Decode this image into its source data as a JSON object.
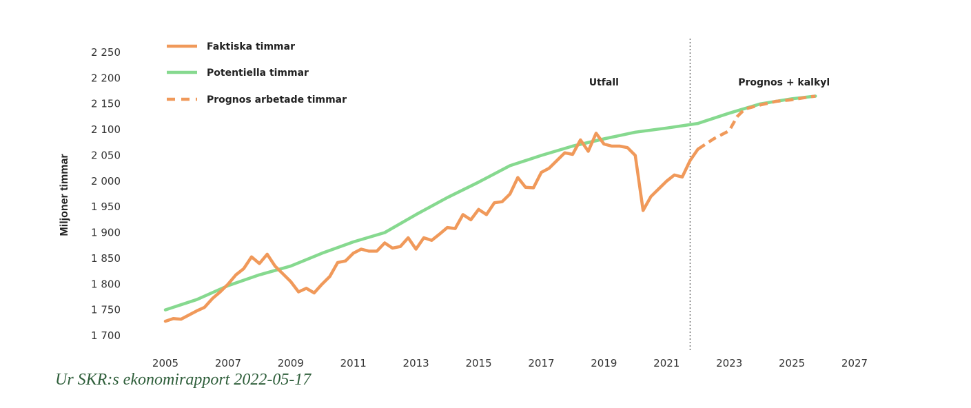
{
  "chart_data": {
    "type": "line",
    "ylabel": "Miljoner timmar",
    "xlabel": "",
    "title": "",
    "ylim": [
      1700,
      2250
    ],
    "xlim": [
      2005,
      2027
    ],
    "y_ticks": [
      "1 700",
      "1 750",
      "1 800",
      "1 850",
      "1 900",
      "1 950",
      "2 000",
      "2 050",
      "2 100",
      "2 150",
      "2 200",
      "2 250"
    ],
    "y_tick_values": [
      1700,
      1750,
      1800,
      1850,
      1900,
      1950,
      2000,
      2050,
      2100,
      2150,
      2200,
      2250
    ],
    "x_ticks": [
      "2005",
      "2007",
      "2009",
      "2011",
      "2013",
      "2015",
      "2017",
      "2019",
      "2021",
      "2023",
      "2025",
      "2027"
    ],
    "x_tick_values": [
      2005,
      2007,
      2009,
      2011,
      2013,
      2015,
      2017,
      2019,
      2021,
      2023,
      2025,
      2027
    ],
    "legend_position": "top-left",
    "grid": false,
    "divider_year": 2021.75,
    "regions": [
      {
        "label": "Utfall",
        "x": 2019
      },
      {
        "label": "Prognos + kalkyl",
        "x": 2024.75
      }
    ],
    "series": [
      {
        "name": "Faktiska timmar",
        "color": "#f0995a",
        "style": "solid",
        "points": [
          [
            2005.0,
            1728
          ],
          [
            2005.25,
            1733
          ],
          [
            2005.5,
            1732
          ],
          [
            2005.75,
            1740
          ],
          [
            2006.0,
            1748
          ],
          [
            2006.25,
            1755
          ],
          [
            2006.5,
            1772
          ],
          [
            2006.75,
            1785
          ],
          [
            2007.0,
            1800
          ],
          [
            2007.25,
            1818
          ],
          [
            2007.5,
            1830
          ],
          [
            2007.75,
            1853
          ],
          [
            2008.0,
            1840
          ],
          [
            2008.25,
            1858
          ],
          [
            2008.5,
            1835
          ],
          [
            2008.75,
            1820
          ],
          [
            2009.0,
            1805
          ],
          [
            2009.25,
            1785
          ],
          [
            2009.5,
            1792
          ],
          [
            2009.75,
            1783
          ],
          [
            2010.0,
            1800
          ],
          [
            2010.25,
            1815
          ],
          [
            2010.5,
            1842
          ],
          [
            2010.75,
            1845
          ],
          [
            2011.0,
            1860
          ],
          [
            2011.25,
            1868
          ],
          [
            2011.5,
            1864
          ],
          [
            2011.75,
            1864
          ],
          [
            2012.0,
            1880
          ],
          [
            2012.25,
            1870
          ],
          [
            2012.5,
            1873
          ],
          [
            2012.75,
            1890
          ],
          [
            2013.0,
            1868
          ],
          [
            2013.25,
            1890
          ],
          [
            2013.5,
            1885
          ],
          [
            2013.75,
            1897
          ],
          [
            2014.0,
            1910
          ],
          [
            2014.25,
            1908
          ],
          [
            2014.5,
            1935
          ],
          [
            2014.75,
            1925
          ],
          [
            2015.0,
            1945
          ],
          [
            2015.25,
            1935
          ],
          [
            2015.5,
            1958
          ],
          [
            2015.75,
            1960
          ],
          [
            2016.0,
            1975
          ],
          [
            2016.25,
            2007
          ],
          [
            2016.5,
            1988
          ],
          [
            2016.75,
            1987
          ],
          [
            2017.0,
            2017
          ],
          [
            2017.25,
            2025
          ],
          [
            2017.5,
            2040
          ],
          [
            2017.75,
            2055
          ],
          [
            2018.0,
            2052
          ],
          [
            2018.25,
            2080
          ],
          [
            2018.5,
            2058
          ],
          [
            2018.75,
            2093
          ],
          [
            2019.0,
            2072
          ],
          [
            2019.25,
            2068
          ],
          [
            2019.5,
            2068
          ],
          [
            2019.75,
            2065
          ],
          [
            2020.0,
            2050
          ],
          [
            2020.25,
            1943
          ],
          [
            2020.5,
            1970
          ],
          [
            2020.75,
            1985
          ],
          [
            2021.0,
            2000
          ],
          [
            2021.25,
            2012
          ],
          [
            2021.5,
            2008
          ],
          [
            2021.75,
            2040
          ],
          [
            2022.0,
            2062
          ]
        ]
      },
      {
        "name": "Potentiella timmar",
        "color": "#86d98f",
        "style": "solid",
        "points": [
          [
            2005.0,
            1750
          ],
          [
            2006.0,
            1770
          ],
          [
            2007.0,
            1797
          ],
          [
            2008.0,
            1818
          ],
          [
            2009.0,
            1835
          ],
          [
            2010.0,
            1860
          ],
          [
            2011.0,
            1882
          ],
          [
            2012.0,
            1900
          ],
          [
            2013.0,
            1935
          ],
          [
            2014.0,
            1968
          ],
          [
            2015.0,
            1998
          ],
          [
            2016.0,
            2030
          ],
          [
            2017.0,
            2050
          ],
          [
            2018.0,
            2068
          ],
          [
            2019.0,
            2082
          ],
          [
            2020.0,
            2095
          ],
          [
            2021.0,
            2103
          ],
          [
            2022.0,
            2112
          ],
          [
            2023.0,
            2132
          ],
          [
            2024.0,
            2150
          ],
          [
            2025.0,
            2160
          ],
          [
            2025.75,
            2165
          ]
        ]
      },
      {
        "name": "Prognos arbetade timmar",
        "color": "#f0995a",
        "style": "dashed",
        "points": [
          [
            2022.0,
            2062
          ],
          [
            2022.5,
            2082
          ],
          [
            2023.0,
            2098
          ],
          [
            2023.25,
            2125
          ],
          [
            2023.5,
            2140
          ],
          [
            2024.0,
            2148
          ],
          [
            2024.5,
            2155
          ],
          [
            2025.0,
            2158
          ],
          [
            2025.5,
            2163
          ],
          [
            2025.75,
            2165
          ]
        ]
      }
    ]
  },
  "source_note": "Ur SKR:s ekonomirapport 2022-05-17"
}
